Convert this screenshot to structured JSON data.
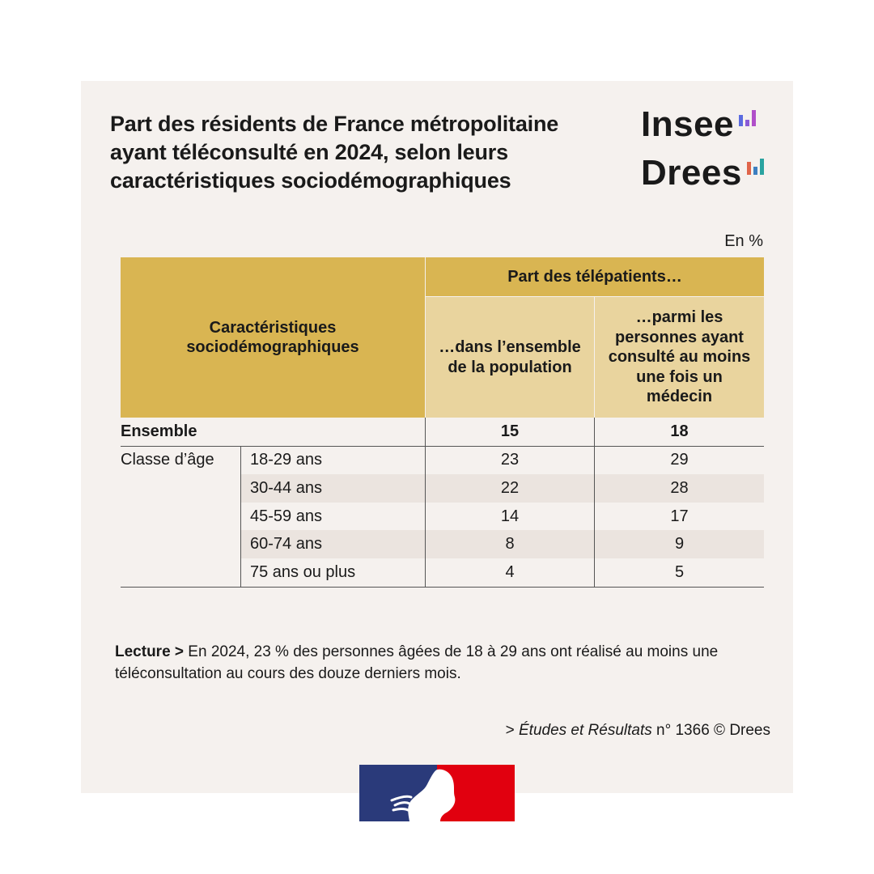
{
  "title": "Part des résidents de France métropolitaine ayant téléconsulté en 2024, selon leurs caractéristiques sociodémographiques",
  "logos": {
    "insee": "Insee",
    "drees": "Drees"
  },
  "unit": "En %",
  "colors": {
    "header_dark": "#d9b552",
    "header_light": "#e9d49e",
    "card_bg": "#f5f1ee",
    "row_shade": "#ebe4df",
    "flag_blue": "#2a3a7a",
    "flag_red": "#e1000f"
  },
  "chart_data": {
    "type": "table",
    "columns": {
      "characteristics": "Caractéristiques sociodémographiques",
      "group": "Part des télépatients…",
      "col1": "…dans l’ensemble de la population",
      "col2": "…parmi les personnes ayant consulté au moins une fois un médecin"
    },
    "total": {
      "label": "Ensemble",
      "values": [
        15,
        18
      ]
    },
    "group_label": "Classe d’âge",
    "rows": [
      {
        "label": "18-29 ans",
        "values": [
          23,
          29
        ]
      },
      {
        "label": "30-44 ans",
        "values": [
          22,
          28
        ]
      },
      {
        "label": "45-59 ans",
        "values": [
          14,
          17
        ]
      },
      {
        "label": "60-74 ans",
        "values": [
          8,
          9
        ]
      },
      {
        "label": "75 ans ou plus",
        "values": [
          4,
          5
        ]
      }
    ]
  },
  "lecture": {
    "label": "Lecture >",
    "text": " En 2024, 23 % des personnes âgées de 18 à 29 ans ont réalisé au moins une téléconsultation au cours des douze derniers mois."
  },
  "source": {
    "prefix": "> ",
    "publication": "Études et Résultats",
    "suffix": " n° 1366 © Drees"
  }
}
